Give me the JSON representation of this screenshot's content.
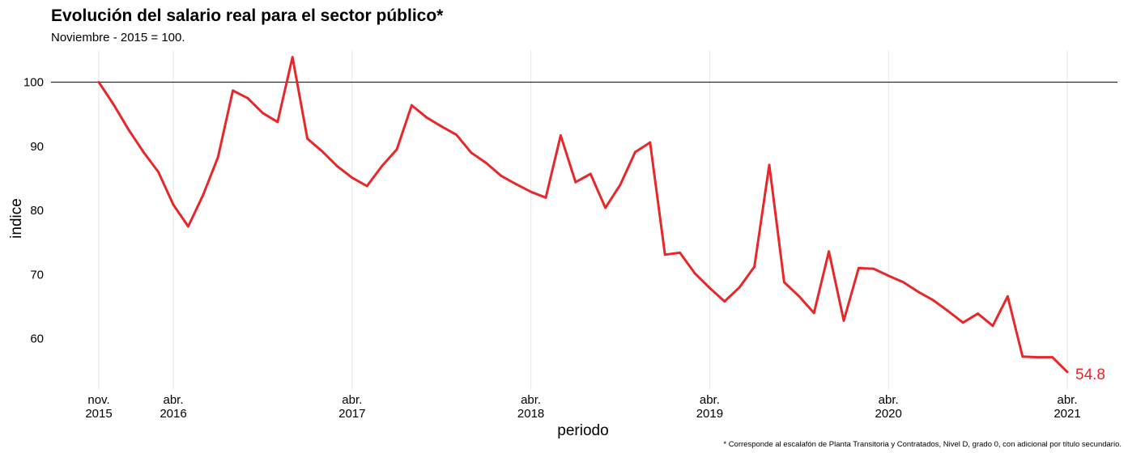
{
  "chart_data": {
    "type": "line",
    "title": "Evolución del salario real para el sector público*",
    "subtitle": "Noviembre - 2015 = 100.",
    "xlabel": "periodo",
    "ylabel": "indice",
    "ylim": [
      52,
      105
    ],
    "yticks": [
      60,
      70,
      80,
      90,
      100
    ],
    "reference_line": 100,
    "grid": true,
    "x_start": "2015-11",
    "x_end": "2021-04",
    "xticks": [
      {
        "date": "2015-11",
        "line1": "nov.",
        "line2": "2015"
      },
      {
        "date": "2016-04",
        "line1": "abr.",
        "line2": "2016"
      },
      {
        "date": "2017-04",
        "line1": "abr.",
        "line2": "2017"
      },
      {
        "date": "2018-04",
        "line1": "abr.",
        "line2": "2018"
      },
      {
        "date": "2019-04",
        "line1": "abr.",
        "line2": "2019"
      },
      {
        "date": "2020-04",
        "line1": "abr.",
        "line2": "2020"
      },
      {
        "date": "2021-04",
        "line1": "abr.",
        "line2": "2021"
      }
    ],
    "series": [
      {
        "color": "#e8272a",
        "x": [
          "2015-11",
          "2015-12",
          "2016-01",
          "2016-02",
          "2016-03",
          "2016-04",
          "2016-05",
          "2016-06",
          "2016-07",
          "2016-08",
          "2016-09",
          "2016-10",
          "2016-11",
          "2016-12",
          "2017-01",
          "2017-02",
          "2017-03",
          "2017-04",
          "2017-05",
          "2017-06",
          "2017-07",
          "2017-08",
          "2017-09",
          "2017-10",
          "2017-11",
          "2017-12",
          "2018-01",
          "2018-02",
          "2018-03",
          "2018-04",
          "2018-05",
          "2018-06",
          "2018-07",
          "2018-08",
          "2018-09",
          "2018-10",
          "2018-11",
          "2018-12",
          "2019-01",
          "2019-02",
          "2019-03",
          "2019-04",
          "2019-05",
          "2019-06",
          "2019-07",
          "2019-08",
          "2019-09",
          "2019-10",
          "2019-11",
          "2019-12",
          "2020-01",
          "2020-02",
          "2020-03",
          "2020-04",
          "2020-05",
          "2020-06",
          "2020-07",
          "2020-08",
          "2020-09",
          "2020-10",
          "2020-11",
          "2020-12",
          "2021-01",
          "2021-02",
          "2021-03",
          "2021-04"
        ],
        "values": [
          100.0,
          96.5,
          92.6,
          89.1,
          86.0,
          80.9,
          77.5,
          82.4,
          88.3,
          98.7,
          97.5,
          95.2,
          93.8,
          103.9,
          91.2,
          89.2,
          86.9,
          85.1,
          83.8,
          86.9,
          89.5,
          96.4,
          94.5,
          93.1,
          91.8,
          89.0,
          87.4,
          85.4,
          84.1,
          82.9,
          82.0,
          91.7,
          84.4,
          85.7,
          80.4,
          84.0,
          89.1,
          90.6,
          73.1,
          73.4,
          70.2,
          67.9,
          65.8,
          68.0,
          71.2,
          87.1,
          68.8,
          66.6,
          64.0,
          73.6,
          62.8,
          71.0,
          70.9,
          69.8,
          68.8,
          67.3,
          66.0,
          64.3,
          62.5,
          63.9,
          62.0,
          66.6,
          57.2,
          57.1,
          57.1,
          54.8
        ]
      }
    ],
    "end_label": "54.8"
  },
  "footnote": "* Corresponde al escalafón de Planta Transitoria y Contratados, Nivel D, grado 0, con adicional por título secundario."
}
